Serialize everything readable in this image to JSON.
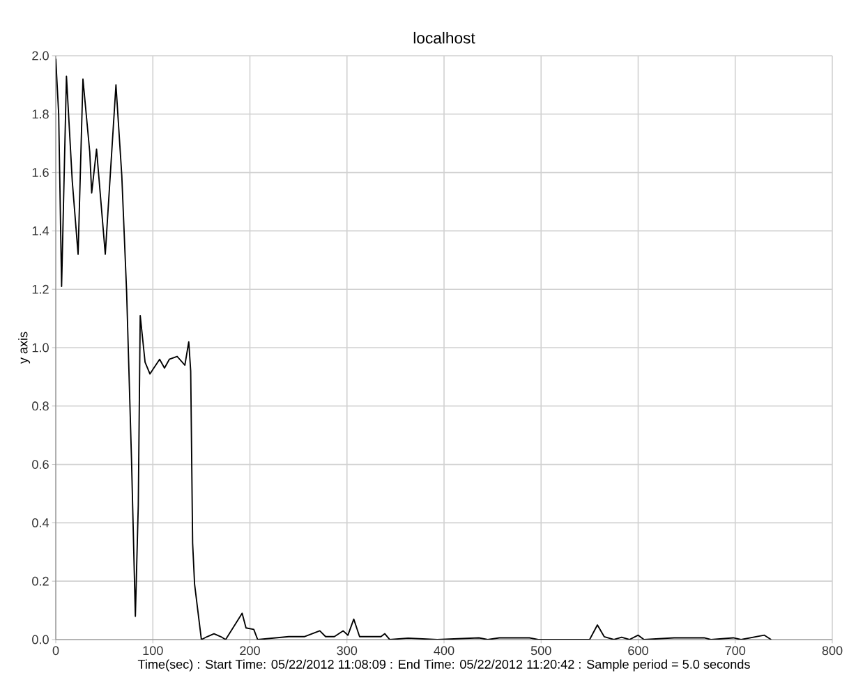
{
  "chart_data": {
    "type": "line",
    "title": "localhost",
    "xlabel": "Time(sec) : Start Time: 05/22/2012 11:08:09  :  End Time: 05/22/2012 11:20:42 : Sample period = 5.0 seconds",
    "ylabel": "y axis",
    "x": [
      0,
      3,
      6,
      11,
      17,
      23,
      28,
      35,
      37,
      42,
      51,
      62,
      68,
      73,
      78,
      82,
      85,
      87,
      92,
      97,
      101,
      107,
      112,
      117,
      125,
      133,
      137,
      139,
      141,
      143,
      150,
      156,
      163,
      170,
      175,
      192,
      196,
      204,
      208,
      240,
      256,
      272,
      278,
      287,
      296,
      301,
      307,
      313,
      335,
      339,
      344,
      363,
      393,
      436,
      445,
      457,
      488,
      497,
      550,
      558,
      565,
      575,
      583,
      591,
      600,
      606,
      637,
      656,
      668,
      675,
      698,
      706,
      730,
      737
    ],
    "series": [
      {
        "color": "#000000",
        "values": [
          1.99,
          1.8,
          1.21,
          1.93,
          1.57,
          1.32,
          1.92,
          1.67,
          1.53,
          1.68,
          1.32,
          1.9,
          1.59,
          1.19,
          0.62,
          0.08,
          0.46,
          1.11,
          0.95,
          0.91,
          0.93,
          0.96,
          0.93,
          0.96,
          0.97,
          0.94,
          1.02,
          0.92,
          0.33,
          0.19,
          0.0,
          0.01,
          0.02,
          0.01,
          0.0,
          0.09,
          0.04,
          0.035,
          0.0,
          0.01,
          0.01,
          0.03,
          0.01,
          0.01,
          0.03,
          0.015,
          0.07,
          0.01,
          0.01,
          0.02,
          0.0,
          0.005,
          0.0,
          0.006,
          0.0,
          0.006,
          0.006,
          0.0,
          0.0,
          0.05,
          0.01,
          0.0,
          0.008,
          0.0,
          0.015,
          0.0,
          0.006,
          0.006,
          0.006,
          0.0,
          0.006,
          0.0,
          0.015,
          0.0
        ]
      }
    ],
    "xlim": [
      0,
      800
    ],
    "xticks": [
      0,
      100,
      200,
      300,
      400,
      500,
      600,
      700,
      800
    ],
    "ylim": [
      0,
      2.0
    ],
    "yticks": [
      {
        "value": 0,
        "label": "0.0"
      },
      {
        "value": 0.2,
        "label": "0.2"
      },
      {
        "value": 0.4,
        "label": "0.4"
      },
      {
        "value": 0.6,
        "label": "0.6"
      },
      {
        "value": 0.8,
        "label": "0.8"
      },
      {
        "value": 1.0,
        "label": "1.0"
      },
      {
        "value": 1.2,
        "label": "1.2"
      },
      {
        "value": 1.4,
        "label": "1.4"
      },
      {
        "value": 1.6,
        "label": "1.6"
      },
      {
        "value": 1.8,
        "label": "1.8"
      },
      {
        "value": 2.0,
        "label": "2.0"
      }
    ],
    "grid": true
  }
}
